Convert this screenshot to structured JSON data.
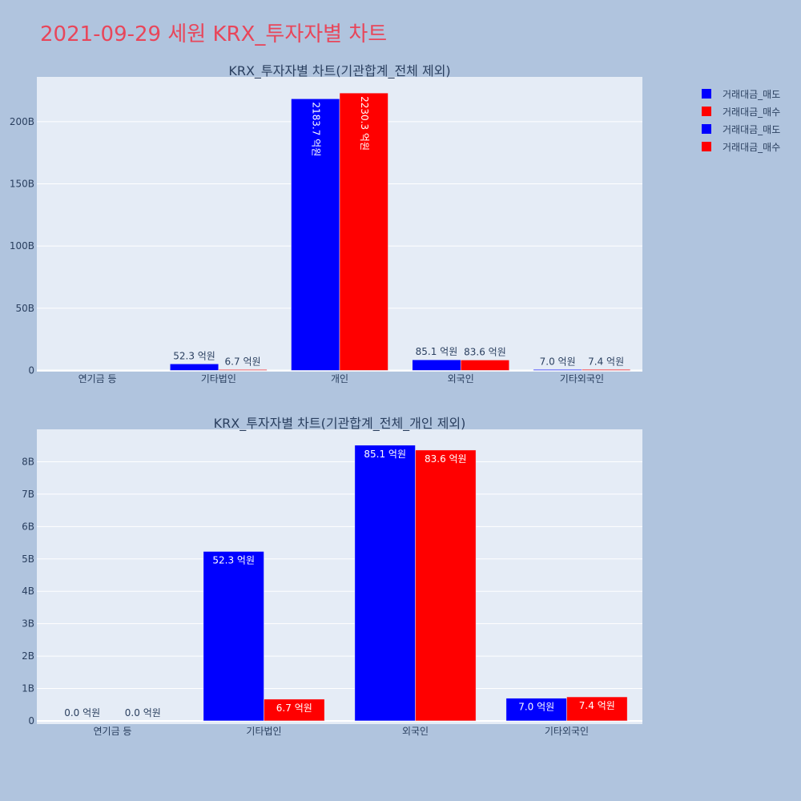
{
  "title": "2021-09-29 세원 KRX_투자자별 차트",
  "legend": [
    {
      "label": "거래대금_매도",
      "color": "#0000ff"
    },
    {
      "label": "거래대금_매수",
      "color": "#ff0000"
    },
    {
      "label": "거래대금_매도",
      "color": "#0000ff"
    },
    {
      "label": "거래대금_매수",
      "color": "#ff0000"
    }
  ],
  "chart_data": [
    {
      "type": "bar",
      "title": "KRX_투자자별 차트(기관합계_전체 제외)",
      "categories": [
        "연기금 등",
        "기타법인",
        "개인",
        "외국인",
        "기타외국인"
      ],
      "series": [
        {
          "name": "거래대금_매도",
          "color": "#0000ff",
          "values": [
            0,
            5.23,
            218.37,
            8.51,
            0.7
          ],
          "labels": [
            "",
            "52.3 억원",
            "2183.7 억원",
            "85.1 억원",
            "7.0 억원"
          ]
        },
        {
          "name": "거래대금_매수",
          "color": "#ff0000",
          "values": [
            0,
            0.67,
            223.03,
            8.36,
            0.74
          ],
          "labels": [
            "",
            "6.7 억원",
            "2230.3 억원",
            "83.6 억원",
            "7.4 억원"
          ]
        }
      ],
      "ylim": [
        -1,
        236
      ],
      "yticks": [
        0,
        50,
        100,
        150,
        200
      ],
      "ytick_labels": [
        "0",
        "50B",
        "100B",
        "150B",
        "200B"
      ],
      "xlabel": "",
      "ylabel": "",
      "grid": true
    },
    {
      "type": "bar",
      "title": "KRX_투자자별 차트(기관합계_전체_개인 제외)",
      "categories": [
        "연기금 등",
        "기타법인",
        "외국인",
        "기타외국인"
      ],
      "series": [
        {
          "name": "거래대금_매도",
          "color": "#0000ff",
          "values": [
            0,
            5.23,
            8.51,
            0.7
          ],
          "labels": [
            "0.0 억원",
            "52.3 억원",
            "85.1 억원",
            "7.0 억원"
          ]
        },
        {
          "name": "거래대금_매수",
          "color": "#ff0000",
          "values": [
            0,
            0.67,
            8.36,
            0.74
          ],
          "labels": [
            "0.0 억원",
            "6.7 억원",
            "83.6 억원",
            "7.4 억원"
          ]
        }
      ],
      "ylim": [
        -0.1,
        9.0
      ],
      "yticks": [
        0,
        1,
        2,
        3,
        4,
        5,
        6,
        7,
        8
      ],
      "ytick_labels": [
        "0",
        "1B",
        "2B",
        "3B",
        "4B",
        "5B",
        "6B",
        "7B",
        "8B"
      ],
      "xlabel": "",
      "ylabel": "",
      "grid": true
    }
  ]
}
